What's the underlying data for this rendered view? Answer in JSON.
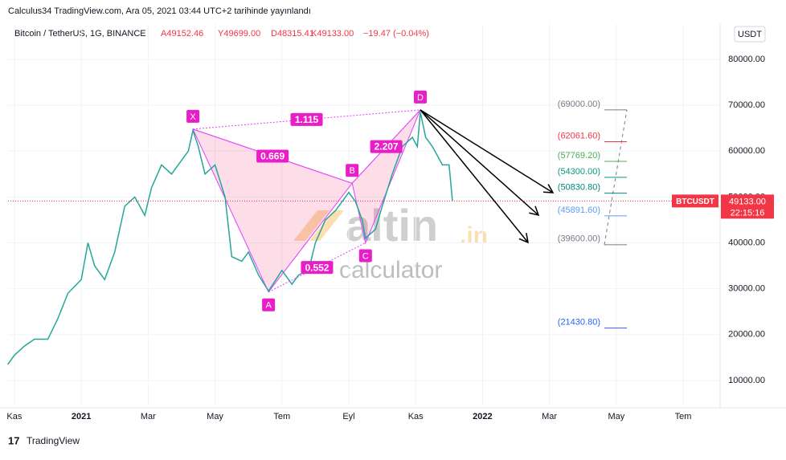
{
  "header": {
    "published": "Calculus34 TradingView.com, Ara 05, 2021 03:44 UTC+2 tarihinde yayınlandı",
    "symbol": "Bitcoin / TetherUS, 1G, BINANCE",
    "open": "A49152.46",
    "high": "Y49699.00",
    "low": "D48315.41",
    "close": "K49133.00",
    "change": "−19.47 (−0.04%)",
    "currency": "USDT"
  },
  "watermark": {
    "brand": "altin",
    "tld": ".in",
    "sub": "calculator"
  },
  "footer": {
    "brand": "TradingView"
  },
  "price_tag": {
    "symbol": "BTCUSDT",
    "price": {
      "value": 49133,
      "label": "49133.00"
    },
    "countdown": "22:15:16"
  },
  "chart_data": {
    "type": "line",
    "color": "#26a69a",
    "x": [
      -0.2,
      0,
      0.3,
      0.6,
      1.0,
      1.3,
      1.6,
      2.0,
      2.2,
      2.4,
      2.7,
      3.0,
      3.3,
      3.6,
      3.9,
      4.1,
      4.4,
      4.7,
      5.0,
      5.2,
      5.34,
      5.5,
      5.7,
      6.0,
      6.3,
      6.5,
      6.8,
      7.0,
      7.3,
      7.6,
      8.0,
      8.3,
      8.5,
      8.8,
      9.0,
      9.3,
      9.6,
      10.0,
      10.2,
      10.4,
      10.5,
      10.8,
      11.0,
      11.3,
      11.6,
      11.9,
      12.05,
      12.14,
      12.3,
      12.5,
      12.8,
      13.0,
      13.1
    ],
    "values": [
      13500,
      15500,
      17500,
      19000,
      19000,
      23500,
      29000,
      32000,
      40000,
      35000,
      32000,
      38000,
      48000,
      50000,
      46000,
      52000,
      57000,
      55000,
      58000,
      60000,
      64500,
      61000,
      55000,
      57000,
      50000,
      37000,
      36000,
      38000,
      33000,
      29500,
      34000,
      31000,
      33000,
      34000,
      40000,
      45000,
      47000,
      51000,
      49000,
      45000,
      41000,
      43000,
      48000,
      55000,
      61000,
      63000,
      61000,
      68500,
      63000,
      61000,
      57000,
      57000,
      49133
    ],
    "xlim": [
      -0.19,
      21.08
    ],
    "ylim": [
      4570,
      85950
    ],
    "xticks": [
      {
        "value": 0,
        "label": "Kas"
      },
      {
        "value": 2,
        "label": "2021"
      },
      {
        "value": 4,
        "label": "Mar"
      },
      {
        "value": 6,
        "label": "May"
      },
      {
        "value": 8,
        "label": "Tem"
      },
      {
        "value": 10,
        "label": "Eyl"
      },
      {
        "value": 12,
        "label": "Kas"
      },
      {
        "value": 14,
        "label": "2022"
      },
      {
        "value": 16,
        "label": "Mar"
      },
      {
        "value": 18,
        "label": "May"
      },
      {
        "value": 20,
        "label": "Tem"
      }
    ],
    "yticks": [
      {
        "value": 10000,
        "label": "10000.00"
      },
      {
        "value": 20000,
        "label": "20000.00"
      },
      {
        "value": 30000,
        "label": "30000.00"
      },
      {
        "value": 40000,
        "label": "40000.00"
      },
      {
        "value": 50000,
        "label": "50000.00"
      },
      {
        "value": 60000,
        "label": "60000.00"
      },
      {
        "value": 70000,
        "label": "70000.00"
      },
      {
        "value": 80000,
        "label": "80000.00"
      }
    ],
    "pattern": [
      {
        "name": "X",
        "x": 5.34,
        "value": 64800
      },
      {
        "name": "A",
        "x": 7.6,
        "value": 29300
      },
      {
        "name": "B",
        "x": 10.1,
        "value": 53000
      },
      {
        "name": "C",
        "x": 10.5,
        "value": 40000
      },
      {
        "name": "D",
        "x": 12.14,
        "value": 69000
      }
    ],
    "ratios": [
      {
        "label": "1.115",
        "from": 0,
        "to": 4
      },
      {
        "label": "0.669",
        "from": 0,
        "to": 2
      },
      {
        "label": "2.207",
        "from": 2,
        "to": 4
      },
      {
        "label": "0.552",
        "from": 1,
        "to": 3
      }
    ],
    "levels": [
      {
        "value": 69000,
        "label": "(69000.00)",
        "color": "#787b86"
      },
      {
        "value": 62061.6,
        "label": "(62061.60)",
        "color": "#f23645"
      },
      {
        "value": 57769.2,
        "label": "(57769.20)",
        "color": "#4caf50"
      },
      {
        "value": 54300,
        "label": "(54300.00)",
        "color": "#089981"
      },
      {
        "value": 50830.8,
        "label": "(50830.80)",
        "color": "#00897b"
      },
      {
        "value": 45891.6,
        "label": "(45891.60)",
        "color": "#5b9cf6"
      },
      {
        "value": 39600,
        "label": "(39600.00)",
        "color": "#787b86"
      },
      {
        "value": 21430.8,
        "label": "(21430.80)",
        "color": "#2962ff"
      }
    ]
  }
}
